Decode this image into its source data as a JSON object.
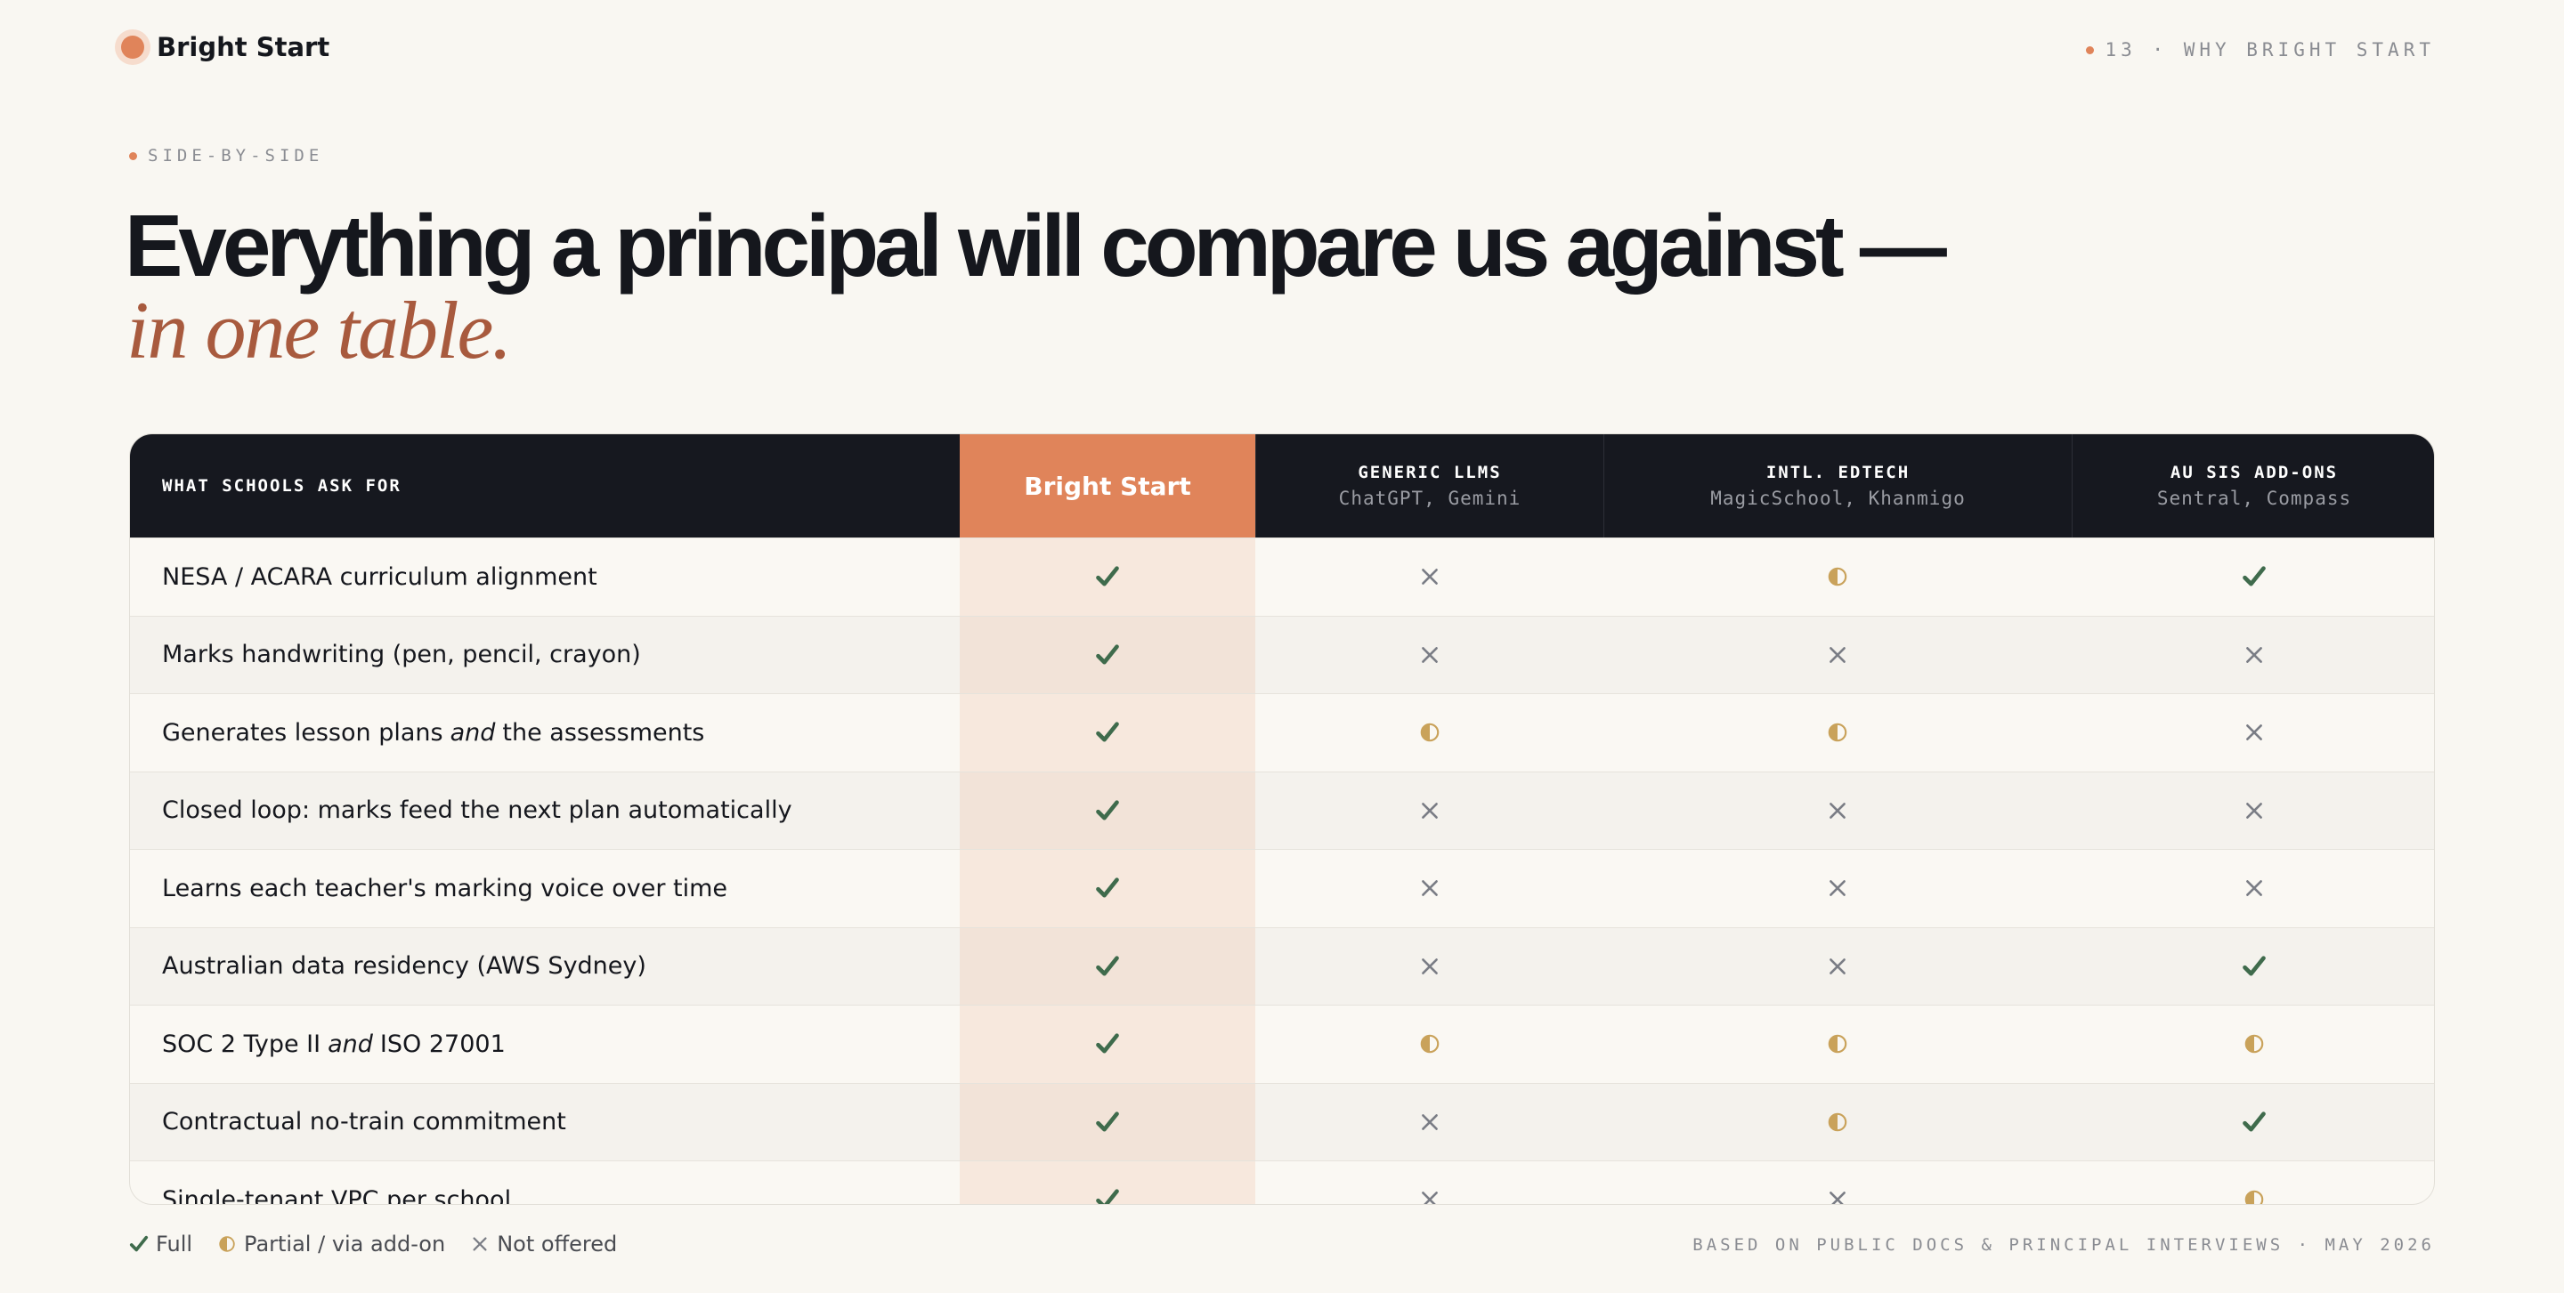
{
  "header": {
    "brand": "Bright Start",
    "page_label": "13 · WHY BRIGHT START"
  },
  "eyebrow": "SIDE-BY-SIDE",
  "title": {
    "line1": "Everything a principal will compare us against —",
    "line2": "in one table."
  },
  "table": {
    "columns": [
      {
        "title": "WHAT SCHOOLS ASK FOR"
      },
      {
        "title": "Bright Start"
      },
      {
        "title": "GENERIC LLMS",
        "subtitle": "ChatGPT, Gemini"
      },
      {
        "title": "INTL. EDTECH",
        "subtitle": "MagicSchool, Khanmigo"
      },
      {
        "title": "AU SIS ADD-ONS",
        "subtitle": "Sentral, Compass"
      }
    ],
    "rows": [
      {
        "feature": [
          {
            "text": "NESA / ACARA curriculum alignment",
            "italic": false
          }
        ],
        "cells": [
          "full",
          "none",
          "partial",
          "full"
        ]
      },
      {
        "feature": [
          {
            "text": "Marks handwriting (pen, pencil, crayon)",
            "italic": false
          }
        ],
        "cells": [
          "full",
          "none",
          "none",
          "none"
        ]
      },
      {
        "feature": [
          {
            "text": "Generates lesson plans",
            "italic": false
          },
          {
            "text": "and",
            "italic": true
          },
          {
            "text": "the assessments",
            "italic": false
          }
        ],
        "cells": [
          "full",
          "partial",
          "partial",
          "none"
        ]
      },
      {
        "feature": [
          {
            "text": "Closed loop: marks feed the next plan automatically",
            "italic": false
          }
        ],
        "cells": [
          "full",
          "none",
          "none",
          "none"
        ]
      },
      {
        "feature": [
          {
            "text": "Learns each teacher's marking voice over time",
            "italic": false
          }
        ],
        "cells": [
          "full",
          "none",
          "none",
          "none"
        ]
      },
      {
        "feature": [
          {
            "text": "Australian data residency (AWS Sydney)",
            "italic": false
          }
        ],
        "cells": [
          "full",
          "none",
          "none",
          "full"
        ]
      },
      {
        "feature": [
          {
            "text": "SOC 2 Type II",
            "italic": false
          },
          {
            "text": "and",
            "italic": true
          },
          {
            "text": "ISO 27001",
            "italic": false
          }
        ],
        "cells": [
          "full",
          "partial",
          "partial",
          "partial"
        ]
      },
      {
        "feature": [
          {
            "text": "Contractual no-train commitment",
            "italic": false
          }
        ],
        "cells": [
          "full",
          "none",
          "partial",
          "full"
        ]
      },
      {
        "feature": [
          {
            "text": "Single-tenant VPC per school",
            "italic": false
          }
        ],
        "cells": [
          "full",
          "none",
          "none",
          "partial"
        ]
      }
    ]
  },
  "legend": [
    {
      "symbol": "full",
      "label": "Full"
    },
    {
      "symbol": "partial",
      "label": "Partial / via add-on"
    },
    {
      "symbol": "none",
      "label": "Not offered"
    }
  ],
  "footnote": "BASED ON PUBLIC DOCS & PRINCIPAL INTERVIEWS · MAY 2026"
}
